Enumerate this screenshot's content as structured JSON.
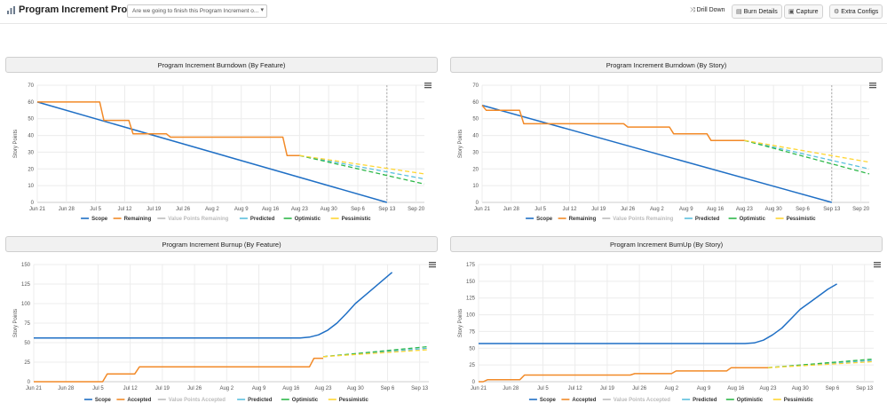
{
  "header": {
    "title": "Program Increment Progress",
    "dropdown_value": "Are we going to finish this Program Increment o...",
    "drill_down_label": "Drill Down",
    "burn_details_label": "Burn Details",
    "capture_label": "Capture",
    "extra_configs_label": "Extra Configs"
  },
  "colors": {
    "scope": "#1f6fc5",
    "remaining": "#f28a28",
    "value_points": "#bdbdbd",
    "predicted": "#5bc0de",
    "optimistic": "#2eb84a",
    "pessimistic": "#ffd633"
  },
  "chart_data": [
    {
      "id": "burndown-feature",
      "type": "line",
      "title": "Program Increment Burndown (By Feature)",
      "ylabel": "Story Points",
      "xlabel": "",
      "ylim": [
        0,
        70
      ],
      "yticks": [
        "0",
        "10",
        "20",
        "30",
        "40",
        "50",
        "60",
        "70"
      ],
      "xlim": [
        0,
        93
      ],
      "xticks": [
        {
          "label": "Jun 21",
          "x": 0
        },
        {
          "label": "Jun 28",
          "x": 7
        },
        {
          "label": "Jul 5",
          "x": 14
        },
        {
          "label": "Jul 12",
          "x": 21
        },
        {
          "label": "Jul 19",
          "x": 28
        },
        {
          "label": "Jul 26",
          "x": 35
        },
        {
          "label": "Aug 2",
          "x": 42
        },
        {
          "label": "Aug 9",
          "x": 49
        },
        {
          "label": "Aug 16",
          "x": 56
        },
        {
          "label": "Aug 23",
          "x": 63
        },
        {
          "label": "Aug 30",
          "x": 70
        },
        {
          "label": "Sep 6",
          "x": 77
        },
        {
          "label": "Sep 13",
          "x": 84
        },
        {
          "label": "Sep 20",
          "x": 91
        }
      ],
      "today_x": 84,
      "series": [
        {
          "name": "Scope",
          "color_key": "scope",
          "style": "solid",
          "points": [
            [
              0,
              60
            ],
            [
              84,
              0
            ]
          ]
        },
        {
          "name": "Remaining",
          "color_key": "remaining",
          "style": "step",
          "points": [
            [
              0,
              60
            ],
            [
              15,
              60
            ],
            [
              16,
              49
            ],
            [
              22,
              49
            ],
            [
              23,
              41
            ],
            [
              31,
              41
            ],
            [
              32,
              39
            ],
            [
              59,
              39
            ],
            [
              60,
              28
            ],
            [
              63,
              28
            ]
          ]
        },
        {
          "name": "Value Points Remaining",
          "color_key": "value_points",
          "style": "none",
          "points": []
        },
        {
          "name": "Predicted",
          "color_key": "predicted",
          "style": "dashed",
          "points": [
            [
              63,
              28
            ],
            [
              93,
              14
            ]
          ]
        },
        {
          "name": "Optimistic",
          "color_key": "optimistic",
          "style": "dashed",
          "points": [
            [
              63,
              28
            ],
            [
              93,
              11
            ]
          ]
        },
        {
          "name": "Pessimistic",
          "color_key": "pessimistic",
          "style": "dashed",
          "points": [
            [
              63,
              28
            ],
            [
              93,
              17
            ]
          ]
        }
      ],
      "legend": [
        "Scope",
        "Remaining",
        "Value Points Remaining",
        "Predicted",
        "Optimistic",
        "Pessimistic"
      ]
    },
    {
      "id": "burndown-story",
      "type": "line",
      "title": "Program Increment Burndown (By Story)",
      "ylabel": "Story Points",
      "xlabel": "",
      "ylim": [
        0,
        70
      ],
      "yticks": [
        "0",
        "10",
        "20",
        "30",
        "40",
        "50",
        "60",
        "70"
      ],
      "xlim": [
        0,
        93
      ],
      "xticks": [
        {
          "label": "Jun 21",
          "x": 0
        },
        {
          "label": "Jun 28",
          "x": 7
        },
        {
          "label": "Jul 5",
          "x": 14
        },
        {
          "label": "Jul 12",
          "x": 21
        },
        {
          "label": "Jul 19",
          "x": 28
        },
        {
          "label": "Jul 26",
          "x": 35
        },
        {
          "label": "Aug 2",
          "x": 42
        },
        {
          "label": "Aug 9",
          "x": 49
        },
        {
          "label": "Aug 16",
          "x": 56
        },
        {
          "label": "Aug 23",
          "x": 63
        },
        {
          "label": "Aug 30",
          "x": 70
        },
        {
          "label": "Sep 6",
          "x": 77
        },
        {
          "label": "Sep 13",
          "x": 84
        },
        {
          "label": "Sep 20",
          "x": 91
        }
      ],
      "today_x": 84,
      "series": [
        {
          "name": "Scope",
          "color_key": "scope",
          "style": "solid",
          "points": [
            [
              0,
              58
            ],
            [
              84,
              0
            ]
          ]
        },
        {
          "name": "Remaining",
          "color_key": "remaining",
          "style": "step",
          "points": [
            [
              0,
              58
            ],
            [
              1,
              55
            ],
            [
              9,
              55
            ],
            [
              10,
              47
            ],
            [
              34,
              47
            ],
            [
              35,
              45
            ],
            [
              45,
              45
            ],
            [
              46,
              41
            ],
            [
              54,
              41
            ],
            [
              55,
              37
            ],
            [
              63,
              37
            ]
          ]
        },
        {
          "name": "Value Points Remaining",
          "color_key": "value_points",
          "style": "none",
          "points": []
        },
        {
          "name": "Predicted",
          "color_key": "predicted",
          "style": "dashed",
          "points": [
            [
              63,
              37
            ],
            [
              93,
              20
            ]
          ]
        },
        {
          "name": "Optimistic",
          "color_key": "optimistic",
          "style": "dashed",
          "points": [
            [
              63,
              37
            ],
            [
              93,
              17
            ]
          ]
        },
        {
          "name": "Pessimistic",
          "color_key": "pessimistic",
          "style": "dashed",
          "points": [
            [
              63,
              37
            ],
            [
              93,
              24
            ]
          ]
        }
      ],
      "legend": [
        "Scope",
        "Remaining",
        "Value Points Remaining",
        "Predicted",
        "Optimistic",
        "Pessimistic"
      ]
    },
    {
      "id": "burnup-feature",
      "type": "line",
      "title": "Program Increment Burnup (By Feature)",
      "ylabel": "Story Points",
      "xlabel": "",
      "ylim": [
        0,
        150
      ],
      "yticks": [
        "0",
        "25",
        "50",
        "75",
        "100",
        "125",
        "150"
      ],
      "xlim": [
        0,
        86
      ],
      "xticks": [
        {
          "label": "Jun 21",
          "x": 0
        },
        {
          "label": "Jun 28",
          "x": 7
        },
        {
          "label": "Jul 5",
          "x": 14
        },
        {
          "label": "Jul 12",
          "x": 21
        },
        {
          "label": "Jul 19",
          "x": 28
        },
        {
          "label": "Jul 26",
          "x": 35
        },
        {
          "label": "Aug 2",
          "x": 42
        },
        {
          "label": "Aug 9",
          "x": 49
        },
        {
          "label": "Aug 16",
          "x": 56
        },
        {
          "label": "Aug 23",
          "x": 63
        },
        {
          "label": "Aug 30",
          "x": 70
        },
        {
          "label": "Sep 6",
          "x": 77
        },
        {
          "label": "Sep 13",
          "x": 84
        }
      ],
      "series": [
        {
          "name": "Scope",
          "color_key": "scope",
          "style": "solid",
          "points": [
            [
              0,
              56
            ],
            [
              58,
              56
            ],
            [
              60,
              57
            ],
            [
              62,
              60
            ],
            [
              64,
              66
            ],
            [
              66,
              75
            ],
            [
              68,
              87
            ],
            [
              70,
              100
            ],
            [
              72,
              110
            ],
            [
              74,
              120
            ],
            [
              76,
              130
            ],
            [
              78,
              140
            ]
          ]
        },
        {
          "name": "Accepted",
          "color_key": "remaining",
          "style": "step",
          "points": [
            [
              0,
              0
            ],
            [
              15,
              0
            ],
            [
              16,
              10
            ],
            [
              22,
              10
            ],
            [
              23,
              19
            ],
            [
              60,
              19
            ],
            [
              61,
              30
            ],
            [
              63,
              30
            ]
          ]
        },
        {
          "name": "Value Points Accepted",
          "color_key": "value_points",
          "style": "none",
          "points": []
        },
        {
          "name": "Predicted",
          "color_key": "predicted",
          "style": "dashed",
          "points": [
            [
              63,
              32
            ],
            [
              86,
              43
            ]
          ]
        },
        {
          "name": "Optimistic",
          "color_key": "optimistic",
          "style": "dashed",
          "points": [
            [
              63,
              32
            ],
            [
              86,
              45
            ]
          ]
        },
        {
          "name": "Pessimistic",
          "color_key": "pessimistic",
          "style": "dashed",
          "points": [
            [
              63,
              32
            ],
            [
              86,
              41
            ]
          ]
        }
      ],
      "legend": [
        "Scope",
        "Accepted",
        "Value Points Accepted",
        "Predicted",
        "Optimistic",
        "Pessimistic"
      ]
    },
    {
      "id": "burnup-story",
      "type": "line",
      "title": "Program Increment BurnUp (By Story)",
      "ylabel": "Story Points",
      "xlabel": "",
      "ylim": [
        0,
        175
      ],
      "yticks": [
        "0",
        "25",
        "50",
        "75",
        "100",
        "125",
        "150",
        "175"
      ],
      "xlim": [
        0,
        86
      ],
      "xticks": [
        {
          "label": "Jun 21",
          "x": 0
        },
        {
          "label": "Jun 28",
          "x": 7
        },
        {
          "label": "Jul 5",
          "x": 14
        },
        {
          "label": "Jul 12",
          "x": 21
        },
        {
          "label": "Jul 19",
          "x": 28
        },
        {
          "label": "Jul 26",
          "x": 35
        },
        {
          "label": "Aug 2",
          "x": 42
        },
        {
          "label": "Aug 9",
          "x": 49
        },
        {
          "label": "Aug 16",
          "x": 56
        },
        {
          "label": "Aug 23",
          "x": 63
        },
        {
          "label": "Aug 30",
          "x": 70
        },
        {
          "label": "Sep 6",
          "x": 77
        },
        {
          "label": "Sep 13",
          "x": 84
        }
      ],
      "series": [
        {
          "name": "Scope",
          "color_key": "scope",
          "style": "solid",
          "points": [
            [
              0,
              57
            ],
            [
              58,
              57
            ],
            [
              60,
              58
            ],
            [
              62,
              62
            ],
            [
              64,
              70
            ],
            [
              66,
              80
            ],
            [
              68,
              94
            ],
            [
              70,
              108
            ],
            [
              72,
              118
            ],
            [
              74,
              128
            ],
            [
              76,
              138
            ],
            [
              78,
              146
            ]
          ]
        },
        {
          "name": "Accepted",
          "color_key": "remaining",
          "style": "step",
          "points": [
            [
              0,
              0
            ],
            [
              1,
              0
            ],
            [
              2,
              3
            ],
            [
              9,
              3
            ],
            [
              10,
              10
            ],
            [
              33,
              10
            ],
            [
              34,
              12
            ],
            [
              42,
              12
            ],
            [
              43,
              16
            ],
            [
              54,
              16
            ],
            [
              55,
              21
            ],
            [
              63,
              21
            ]
          ]
        },
        {
          "name": "Value Points Accepted",
          "color_key": "value_points",
          "style": "none",
          "points": []
        },
        {
          "name": "Predicted",
          "color_key": "predicted",
          "style": "dashed",
          "points": [
            [
              63,
              21
            ],
            [
              86,
              32
            ]
          ]
        },
        {
          "name": "Optimistic",
          "color_key": "optimistic",
          "style": "dashed",
          "points": [
            [
              63,
              21
            ],
            [
              86,
              34
            ]
          ]
        },
        {
          "name": "Pessimistic",
          "color_key": "pessimistic",
          "style": "dashed",
          "points": [
            [
              63,
              21
            ],
            [
              86,
              30
            ]
          ]
        }
      ],
      "legend": [
        "Scope",
        "Accepted",
        "Value Points Accepted",
        "Predicted",
        "Optimistic",
        "Pessimistic"
      ]
    }
  ]
}
